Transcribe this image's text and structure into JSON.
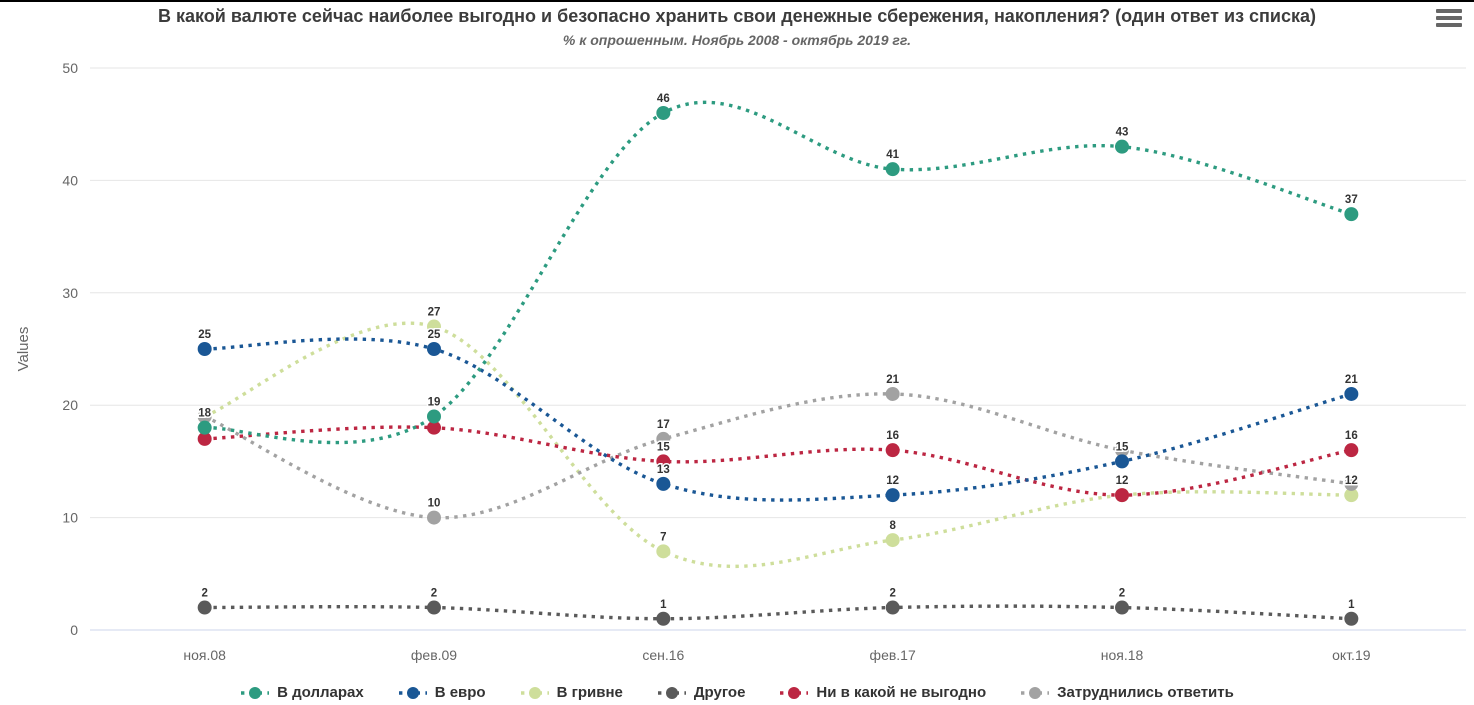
{
  "header": {
    "title": "В какой валюте сейчас наиболее выгодно и безопасно хранить свои денежные сбережения, накопления? (один ответ из списка)",
    "subtitle": "% к опрошенным. Ноябрь 2008 - октябрь 2019 гг."
  },
  "toolbar": {
    "context_menu_icon": "hamburger-icon"
  },
  "chart_data": {
    "type": "line",
    "line_style": "dotted-spline",
    "title": "В какой валюте сейчас наиболее выгодно и безопасно хранить свои денежные сбережения, накопления? (один ответ из списка)",
    "subtitle": "% к опрошенным. Ноябрь 2008 - октябрь 2019 гг.",
    "xlabel": "",
    "ylabel": "Values",
    "ylim": [
      0,
      50
    ],
    "yticks": [
      0,
      10,
      20,
      30,
      40,
      50
    ],
    "grid": true,
    "legend_position": "bottom",
    "categories": [
      "ноя.08",
      "фев.09",
      "сен.16",
      "фев.17",
      "ноя.18",
      "окт.19"
    ],
    "series": [
      {
        "name": "В долларах",
        "slug": "dollars",
        "color": "#2d9b80",
        "values": [
          18,
          19,
          46,
          41,
          43,
          37
        ],
        "label_visible": [
          1,
          1,
          1,
          1,
          1,
          1
        ]
      },
      {
        "name": "В евро",
        "slug": "euro",
        "color": "#1a5795",
        "values": [
          25,
          25,
          13,
          12,
          15,
          21
        ],
        "label_visible": [
          1,
          1,
          1,
          1,
          1,
          1
        ]
      },
      {
        "name": "В гривне",
        "slug": "hryvnia",
        "color": "#cede9b",
        "values": [
          19,
          27,
          7,
          8,
          12,
          12
        ],
        "label_visible": [
          0,
          1,
          1,
          1,
          0,
          1
        ]
      },
      {
        "name": "Другое",
        "slug": "other",
        "color": "#5a5a5a",
        "values": [
          2,
          2,
          1,
          2,
          2,
          1
        ],
        "label_visible": [
          1,
          1,
          1,
          1,
          1,
          1
        ]
      },
      {
        "name": "Ни в какой не выгодно",
        "slug": "none-profitable",
        "color": "#bc2642",
        "values": [
          17,
          18,
          15,
          16,
          12,
          16
        ],
        "label_visible": [
          0,
          0,
          1,
          1,
          1,
          1
        ]
      },
      {
        "name": "Затруднились ответить",
        "slug": "undecided",
        "color": "#a2a2a2",
        "values": [
          19,
          10,
          17,
          21,
          16,
          13
        ],
        "label_visible": [
          0,
          1,
          1,
          1,
          0,
          0
        ]
      }
    ],
    "draw_order": [
      2,
      5,
      3,
      4,
      1,
      0
    ],
    "colors": {
      "grid_line": "#e6e6e6",
      "axis_zero_line": "#ccd6eb",
      "tick_label": "#666666",
      "axis_title": "#666666",
      "data_label": "#333333",
      "title_text": "#3c3c3c",
      "subtitle_text": "#666666",
      "legend_text": "#333333"
    }
  }
}
